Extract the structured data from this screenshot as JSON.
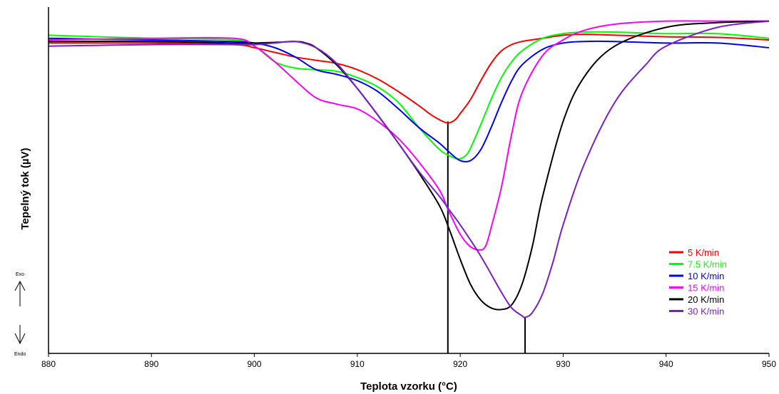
{
  "chart_data": {
    "type": "line",
    "title": "",
    "xlabel": "Teplota vzorku (°C)",
    "ylabel": "Tepelný tok (µV)",
    "xlim": [
      880,
      950
    ],
    "xticks": [
      "880",
      "890",
      "900",
      "910",
      "920",
      "930",
      "940",
      "950"
    ],
    "ylim": [
      -1.0,
      0.1
    ],
    "grid": false,
    "legend_position": "bottom-right",
    "direction_labels": {
      "exo": "Exo",
      "endo": "Endo"
    },
    "markers": [
      {
        "x": 918.8,
        "y_top": -0.26
      },
      {
        "x": 926.3,
        "y_top": -0.885
      }
    ],
    "series": [
      {
        "name": "5 K/min",
        "color": "#ff0000",
        "x": [
          880,
          890,
          898,
          900,
          902,
          904,
          906,
          908,
          910,
          912,
          914,
          916,
          917,
          918,
          918.8,
          919.5,
          920,
          921,
          922,
          923,
          924,
          925,
          926,
          928,
          930,
          932,
          935,
          940,
          945,
          950
        ],
        "y": [
          -0.01,
          -0.01,
          -0.015,
          -0.025,
          -0.04,
          -0.055,
          -0.065,
          -0.075,
          -0.095,
          -0.125,
          -0.165,
          -0.21,
          -0.235,
          -0.255,
          -0.265,
          -0.255,
          -0.235,
          -0.19,
          -0.13,
          -0.075,
          -0.035,
          -0.015,
          -0.005,
          0.005,
          0.015,
          0.018,
          0.015,
          0.01,
          0.008,
          0.0
        ]
      },
      {
        "name": "7.5 K/min",
        "color": "#00ff00",
        "x": [
          880,
          890,
          898,
          900,
          902,
          904,
          906,
          908,
          910,
          912,
          914,
          916,
          918,
          919,
          919.8,
          920.5,
          921,
          922,
          923,
          924,
          925,
          926,
          928,
          930,
          932,
          935,
          940,
          945,
          950
        ],
        "y": [
          0.015,
          0.005,
          0.0,
          -0.02,
          -0.07,
          -0.09,
          -0.095,
          -0.1,
          -0.12,
          -0.15,
          -0.2,
          -0.28,
          -0.35,
          -0.37,
          -0.38,
          -0.37,
          -0.345,
          -0.27,
          -0.19,
          -0.12,
          -0.07,
          -0.035,
          0.005,
          0.02,
          0.025,
          0.025,
          0.02,
          0.02,
          0.005
        ]
      },
      {
        "name": "10 K/min",
        "color": "#0000ff",
        "x": [
          880,
          890,
          898,
          900,
          902,
          904,
          906,
          908,
          910,
          912,
          914,
          916,
          918,
          919,
          920,
          921,
          922,
          923,
          924,
          925,
          926,
          928,
          930,
          932,
          935,
          940,
          945,
          950
        ],
        "y": [
          0.005,
          0.0,
          -0.005,
          -0.01,
          -0.025,
          -0.055,
          -0.095,
          -0.11,
          -0.13,
          -0.165,
          -0.22,
          -0.28,
          -0.33,
          -0.36,
          -0.385,
          -0.385,
          -0.35,
          -0.28,
          -0.2,
          -0.13,
          -0.08,
          -0.03,
          -0.01,
          -0.005,
          -0.005,
          -0.01,
          -0.01,
          -0.025
        ]
      },
      {
        "name": "15 K/min",
        "color": "#ff00ff",
        "x": [
          880,
          890,
          898,
          900,
          902,
          904,
          906,
          908,
          910,
          912,
          914,
          916,
          918,
          918.8,
          920,
          921,
          922,
          922.5,
          923,
          924,
          925,
          926,
          928,
          930,
          932,
          935,
          940,
          945,
          950
        ],
        "y": [
          0.0,
          0.005,
          0.005,
          -0.02,
          -0.07,
          -0.13,
          -0.185,
          -0.205,
          -0.22,
          -0.26,
          -0.315,
          -0.39,
          -0.48,
          -0.54,
          -0.62,
          -0.66,
          -0.67,
          -0.655,
          -0.6,
          -0.47,
          -0.3,
          -0.17,
          -0.05,
          0.0,
          0.03,
          0.05,
          0.06,
          0.06,
          0.06
        ]
      },
      {
        "name": "20 K/min",
        "color": "#000000",
        "x": [
          880,
          890,
          898,
          900,
          902,
          904,
          905,
          906,
          908,
          910,
          912,
          914,
          916,
          918,
          919,
          920,
          921,
          922,
          923,
          924,
          925,
          926,
          927,
          928,
          930,
          932,
          935,
          940,
          945,
          950
        ],
        "y": [
          -0.005,
          -0.005,
          -0.01,
          -0.01,
          -0.008,
          -0.005,
          -0.01,
          -0.025,
          -0.08,
          -0.155,
          -0.24,
          -0.33,
          -0.425,
          -0.53,
          -0.61,
          -0.7,
          -0.78,
          -0.83,
          -0.855,
          -0.86,
          -0.845,
          -0.78,
          -0.66,
          -0.5,
          -0.26,
          -0.12,
          -0.02,
          0.04,
          0.055,
          0.06
        ]
      },
      {
        "name": "30 K/min",
        "color": "#7b1fc9",
        "x": [
          880,
          890,
          898,
          900,
          902,
          904,
          906,
          908,
          910,
          912,
          914,
          916,
          918,
          919,
          920,
          922,
          924,
          925,
          926,
          926.3,
          927,
          928,
          929,
          930,
          932,
          935,
          938,
          940,
          945,
          950
        ],
        "y": [
          -0.02,
          -0.015,
          -0.015,
          -0.015,
          -0.01,
          -0.005,
          -0.025,
          -0.075,
          -0.155,
          -0.24,
          -0.33,
          -0.42,
          -0.5,
          -0.545,
          -0.59,
          -0.69,
          -0.805,
          -0.855,
          -0.88,
          -0.885,
          -0.87,
          -0.81,
          -0.71,
          -0.59,
          -0.4,
          -0.2,
          -0.08,
          -0.02,
          0.04,
          0.06
        ]
      }
    ]
  }
}
